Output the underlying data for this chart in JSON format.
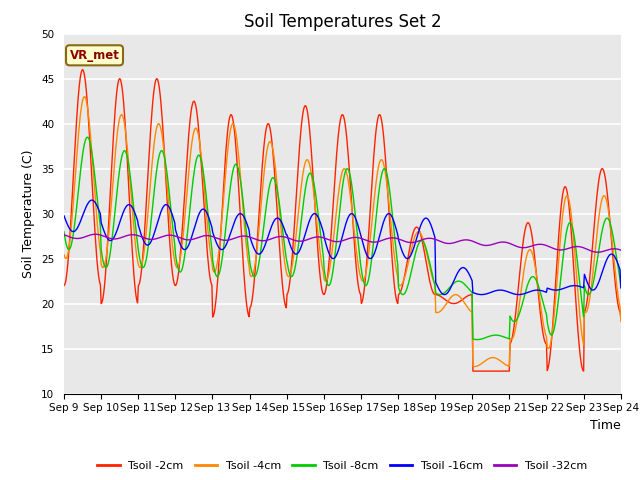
{
  "title": "Soil Temperatures Set 2",
  "xlabel": "Time",
  "ylabel": "Soil Temperature (C)",
  "ylim": [
    10,
    50
  ],
  "xlim": [
    0,
    15
  ],
  "x_tick_labels": [
    "Sep 9",
    "Sep 10",
    "Sep 11",
    "Sep 12",
    "Sep 13",
    "Sep 14",
    "Sep 15",
    "Sep 16",
    "Sep 17",
    "Sep 18",
    "Sep 19",
    "Sep 20",
    "Sep 21",
    "Sep 22",
    "Sep 23",
    "Sep 24"
  ],
  "annotation_text": "VR_met",
  "series_colors": [
    "#ff2200",
    "#ff8800",
    "#00cc00",
    "#0000ff",
    "#9900bb"
  ],
  "series_labels": [
    "Tsoil -2cm",
    "Tsoil -4cm",
    "Tsoil -8cm",
    "Tsoil -16cm",
    "Tsoil -32cm"
  ],
  "background_color": "#e8e8e8",
  "title_fontsize": 12,
  "label_fontsize": 9,
  "tick_fontsize": 7.5,
  "peaks_2cm": [
    46,
    45,
    45,
    42.5,
    41,
    40,
    42,
    41,
    41,
    28.5,
    20,
    12.5,
    29,
    33,
    35,
    18.5
  ],
  "troughs_2cm": [
    22,
    20,
    22,
    22,
    18.5,
    19.5,
    21,
    21,
    20,
    21,
    21,
    12.5,
    15.5,
    12.5,
    19,
    18.5
  ],
  "phase_2cm": 0.25,
  "peaks_4cm": [
    43,
    41,
    40,
    39.5,
    40,
    38,
    36,
    35,
    36,
    28,
    21,
    14,
    26,
    32,
    32,
    19
  ],
  "troughs_4cm": [
    25,
    24,
    24,
    24,
    23.5,
    23,
    23,
    22.5,
    22.5,
    22,
    19,
    13,
    16,
    15,
    19,
    18
  ],
  "phase_4cm": 0.3,
  "peaks_8cm": [
    38.5,
    37,
    37,
    36.5,
    35.5,
    34,
    34.5,
    35,
    35,
    27,
    22.5,
    16.5,
    23,
    29,
    29.5,
    22
  ],
  "troughs_8cm": [
    26,
    24,
    24,
    23.5,
    23,
    23,
    23,
    22,
    22,
    21,
    21,
    16,
    18,
    16.5,
    21,
    22
  ],
  "phase_8cm": 0.38,
  "peaks_16cm": [
    31.5,
    31,
    31,
    30.5,
    30,
    29.5,
    30,
    30,
    30,
    29.5,
    24,
    21.5,
    21.5,
    22,
    25.5,
    22
  ],
  "troughs_16cm": [
    28,
    27,
    26.5,
    26,
    26,
    25.5,
    25.5,
    25,
    25,
    25,
    21,
    21,
    21,
    21.5,
    21.5,
    21.5
  ],
  "phase_16cm": 0.5,
  "yticks": [
    10,
    15,
    20,
    25,
    30,
    35,
    40,
    45,
    50
  ]
}
